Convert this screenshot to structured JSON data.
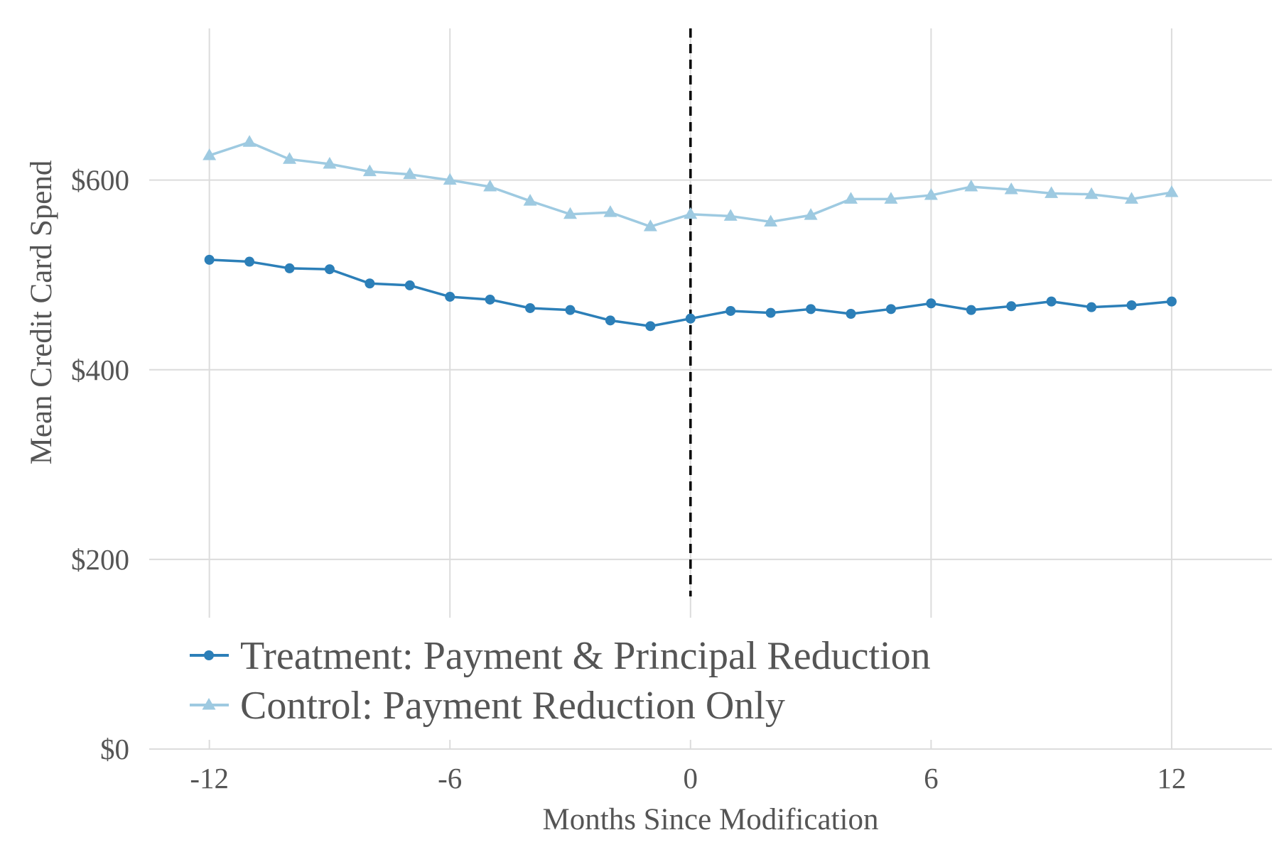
{
  "chart_data": {
    "type": "line",
    "title": "",
    "xlabel": "Months Since Modification",
    "ylabel": "Mean Credit Card Spend",
    "xlim": [
      -13.5,
      14.5
    ],
    "ylim": [
      0,
      760
    ],
    "x_ticks": [
      -12,
      -6,
      0,
      6,
      12
    ],
    "x_tick_labels": [
      "-12",
      "-6",
      "0",
      "6",
      "12"
    ],
    "y_ticks": [
      0,
      200,
      400,
      600
    ],
    "y_tick_labels": [
      "$0",
      "$200",
      "$400",
      "$600"
    ],
    "grid": true,
    "vline": {
      "x": 0,
      "style": "dashed",
      "color": "#000000"
    },
    "x": [
      -12,
      -11,
      -10,
      -9,
      -8,
      -7,
      -6,
      -5,
      -4,
      -3,
      -2,
      -1,
      0,
      1,
      2,
      3,
      4,
      5,
      6,
      7,
      8,
      9,
      10,
      11,
      12
    ],
    "series": [
      {
        "name": "Treatment: Payment & Principal Reduction",
        "marker": "circle",
        "color": "#2c7fb8",
        "values": [
          516,
          514,
          507,
          506,
          491,
          489,
          477,
          474,
          465,
          463,
          452,
          446,
          454,
          462,
          460,
          464,
          459,
          464,
          470,
          463,
          467,
          472,
          466,
          468,
          472
        ]
      },
      {
        "name": "Control: Payment Reduction Only",
        "marker": "triangle",
        "color": "#9ecae1",
        "values": [
          626,
          640,
          622,
          617,
          609,
          606,
          600,
          593,
          578,
          564,
          566,
          551,
          564,
          562,
          556,
          563,
          580,
          580,
          584,
          593,
          590,
          586,
          585,
          580,
          587
        ]
      }
    ],
    "legend_position": "bottom-left"
  }
}
